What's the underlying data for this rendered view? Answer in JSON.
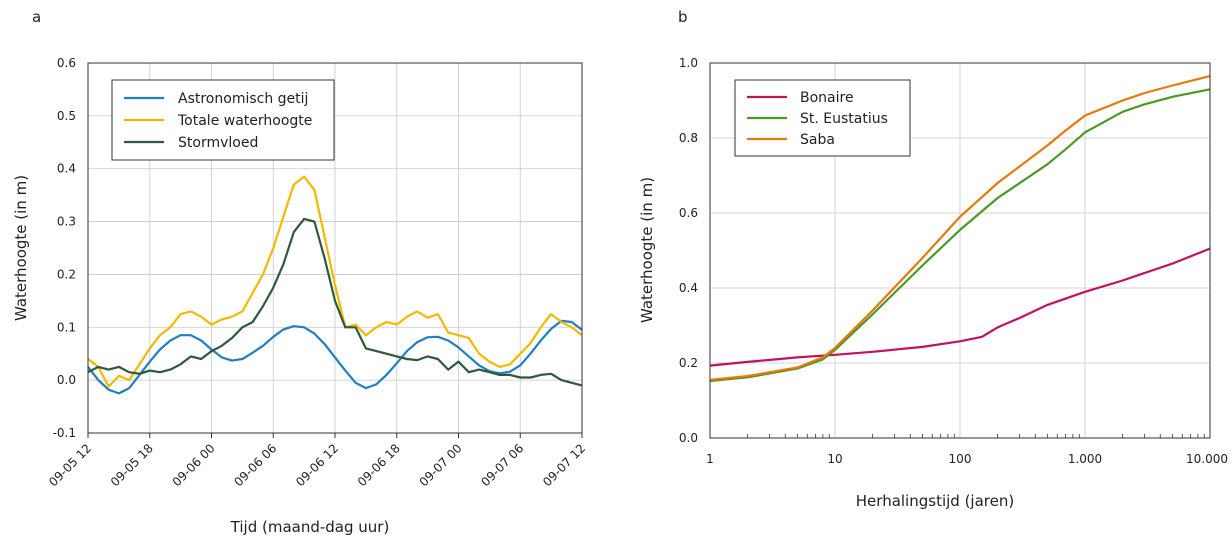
{
  "chart_data": [
    {
      "type": "line",
      "panel_label": "a",
      "xlabel": "Tijd (maand-dag uur)",
      "ylabel": "Waterhoogte (in m)",
      "x_ticks": [
        "09-05 12",
        "09-05 18",
        "09-06 00",
        "09-06 06",
        "09-06 12",
        "09-06 18",
        "09-07 00",
        "09-07 06",
        "09-07 12"
      ],
      "x_range_hours": [
        0,
        48
      ],
      "ylim": [
        -0.1,
        0.6
      ],
      "y_ticks": [
        "-0.1",
        "0.0",
        "0.1",
        "0.2",
        "0.3",
        "0.4",
        "0.5",
        "0.6"
      ],
      "grid": true,
      "legend_position": "top-left",
      "series": [
        {
          "name": "Astronomisch getij",
          "color": "#1f7fc4",
          "x": [
            0,
            1,
            2,
            3,
            4,
            5,
            6,
            7,
            8,
            9,
            10,
            11,
            12,
            13,
            14,
            15,
            16,
            17,
            18,
            19,
            20,
            21,
            22,
            23,
            24,
            25,
            26,
            27,
            28,
            29,
            30,
            31,
            32,
            33,
            34,
            35,
            36,
            37,
            38,
            39,
            40,
            41,
            42,
            43,
            44,
            45,
            46,
            47,
            48
          ],
          "values": [
            0.025,
            0.0,
            -0.018,
            -0.025,
            -0.015,
            0.01,
            0.035,
            0.058,
            0.075,
            0.085,
            0.085,
            0.075,
            0.058,
            0.043,
            0.037,
            0.04,
            0.052,
            0.065,
            0.082,
            0.096,
            0.102,
            0.1,
            0.088,
            0.068,
            0.043,
            0.018,
            -0.005,
            -0.015,
            -0.008,
            0.01,
            0.032,
            0.055,
            0.072,
            0.081,
            0.082,
            0.075,
            0.062,
            0.045,
            0.028,
            0.017,
            0.013,
            0.016,
            0.028,
            0.05,
            0.075,
            0.097,
            0.112,
            0.11,
            0.095
          ]
        },
        {
          "name": "Totale waterhoogte",
          "color": "#f5b800",
          "x": [
            0,
            1,
            2,
            3,
            4,
            5,
            6,
            7,
            8,
            9,
            10,
            11,
            12,
            13,
            14,
            15,
            16,
            17,
            18,
            19,
            20,
            21,
            22,
            23,
            24,
            25,
            26,
            27,
            28,
            29,
            30,
            31,
            32,
            33,
            34,
            35,
            36,
            37,
            38,
            39,
            40,
            41,
            42,
            43,
            44,
            45,
            46,
            47,
            48
          ],
          "values": [
            0.04,
            0.025,
            -0.012,
            0.008,
            0.0,
            0.03,
            0.06,
            0.085,
            0.1,
            0.125,
            0.13,
            0.12,
            0.105,
            0.115,
            0.12,
            0.13,
            0.165,
            0.2,
            0.25,
            0.31,
            0.37,
            0.385,
            0.36,
            0.27,
            0.18,
            0.1,
            0.105,
            0.085,
            0.1,
            0.11,
            0.105,
            0.12,
            0.13,
            0.118,
            0.125,
            0.09,
            0.085,
            0.08,
            0.05,
            0.035,
            0.025,
            0.03,
            0.05,
            0.07,
            0.1,
            0.125,
            0.11,
            0.1,
            0.085
          ]
        },
        {
          "name": "Stormvloed",
          "color": "#2d5a3a",
          "x": [
            0,
            1,
            2,
            3,
            4,
            5,
            6,
            7,
            8,
            9,
            10,
            11,
            12,
            13,
            14,
            15,
            16,
            17,
            18,
            19,
            20,
            21,
            22,
            23,
            24,
            25,
            26,
            27,
            28,
            29,
            30,
            31,
            32,
            33,
            34,
            35,
            36,
            37,
            38,
            39,
            40,
            41,
            42,
            43,
            44,
            45,
            46,
            47,
            48
          ],
          "values": [
            0.015,
            0.025,
            0.02,
            0.025,
            0.015,
            0.012,
            0.018,
            0.015,
            0.02,
            0.03,
            0.045,
            0.04,
            0.055,
            0.065,
            0.08,
            0.1,
            0.11,
            0.14,
            0.175,
            0.22,
            0.28,
            0.305,
            0.3,
            0.23,
            0.15,
            0.1,
            0.1,
            0.06,
            0.055,
            0.05,
            0.045,
            0.04,
            0.038,
            0.045,
            0.04,
            0.02,
            0.035,
            0.015,
            0.02,
            0.015,
            0.01,
            0.01,
            0.005,
            0.005,
            0.01,
            0.012,
            0.0,
            -0.005,
            -0.01
          ]
        }
      ]
    },
    {
      "type": "line",
      "panel_label": "b",
      "xlabel": "Herhalingstijd (jaren)",
      "ylabel": "Waterhoogte (in m)",
      "x_scale": "log",
      "xlim": [
        1,
        10000
      ],
      "x_ticks": [
        "1",
        "10",
        "100",
        "1.000",
        "10.000"
      ],
      "ylim": [
        0.0,
        1.0
      ],
      "y_ticks": [
        "0.0",
        "0.2",
        "0.4",
        "0.6",
        "0.8",
        "1.0"
      ],
      "grid": true,
      "legend_position": "top-left",
      "series": [
        {
          "name": "Bonaire",
          "color": "#c0135b",
          "x": [
            1,
            2,
            5,
            10,
            20,
            50,
            100,
            150,
            200,
            300,
            500,
            1000,
            2000,
            3000,
            5000,
            10000
          ],
          "values": [
            0.193,
            0.203,
            0.215,
            0.222,
            0.23,
            0.243,
            0.258,
            0.27,
            0.295,
            0.32,
            0.355,
            0.39,
            0.42,
            0.44,
            0.465,
            0.505
          ]
        },
        {
          "name": "St. Eustatius",
          "color": "#4a9a22",
          "x": [
            1,
            2,
            5,
            8,
            10,
            20,
            50,
            100,
            200,
            500,
            700,
            1000,
            2000,
            3000,
            5000,
            10000
          ],
          "values": [
            0.152,
            0.162,
            0.185,
            0.21,
            0.235,
            0.33,
            0.46,
            0.555,
            0.64,
            0.73,
            0.77,
            0.815,
            0.87,
            0.89,
            0.91,
            0.93
          ]
        },
        {
          "name": "Saba",
          "color": "#e8780a",
          "x": [
            1,
            2,
            5,
            8,
            10,
            20,
            50,
            100,
            200,
            500,
            700,
            1000,
            2000,
            3000,
            5000,
            10000
          ],
          "values": [
            0.155,
            0.165,
            0.188,
            0.215,
            0.24,
            0.34,
            0.48,
            0.59,
            0.68,
            0.78,
            0.82,
            0.86,
            0.9,
            0.92,
            0.94,
            0.965
          ]
        }
      ]
    }
  ]
}
